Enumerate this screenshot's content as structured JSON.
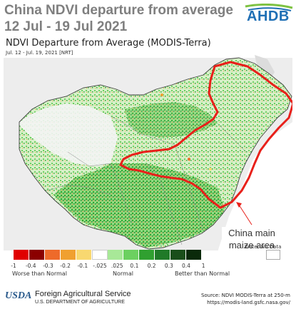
{
  "header": {
    "title_line1": "China NDVI departure from average",
    "title_line2": "12 Jul - 19 Jul 2021",
    "logo_text": "AHDB"
  },
  "panel": {
    "title": "NDVI Departure from Average (MODIS-Terra)",
    "date_label": "Jul. 12 - Jul. 19, 2021 [NRT]"
  },
  "annotation": {
    "line1": "China main",
    "line2": "maize area"
  },
  "legend": {
    "water_nodata_label": "Water No Data",
    "colors": [
      "#e00000",
      "#8b0000",
      "#ee6a2a",
      "#f0a030",
      "#f8d870",
      "#ffffff",
      "#a8e898",
      "#6cd060",
      "#30a030",
      "#207a28",
      "#1a4e1a",
      "#0a2a0a"
    ],
    "nodata_color": "#ffffff",
    "tick_labels": [
      "-1",
      "-0.4",
      "-0.3",
      "-0.2",
      "-0.1",
      "-.025",
      ".025",
      "0.1",
      "0.2",
      "0.3",
      "0.4",
      "1"
    ],
    "category_worse": "Worse than Normal",
    "category_normal": "Normal",
    "category_better": "Better than Normal"
  },
  "footer": {
    "usda": "USDA",
    "agency": "Foreign Agricultural Service",
    "department": "U.S. DEPARTMENT OF AGRICULTURE",
    "source": "Source: NDVI MODIS-Terra at 250-m",
    "url": "https://modis-land.gsfc.nasa.gov/"
  },
  "colors": {
    "outline": "#e8201a",
    "title_gray": "#7f7f7f",
    "logo_blue": "#1f6fb5"
  }
}
